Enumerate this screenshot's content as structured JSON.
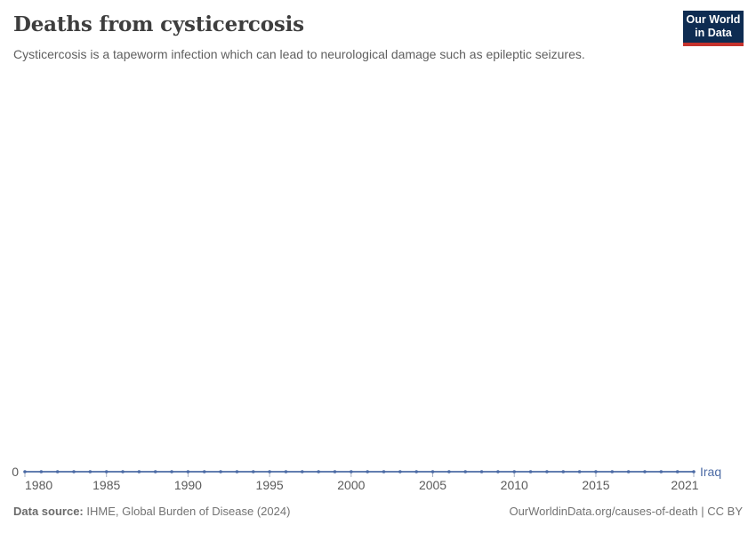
{
  "header": {
    "title": "Deaths from cysticercosis",
    "subtitle": "Cysticercosis is a tapeworm infection which can lead to neurological damage such as epileptic seizures."
  },
  "logo": {
    "line1": "Our World",
    "line2": "in Data",
    "bg_color": "#0e2c52",
    "accent_color": "#c5332d"
  },
  "chart_data": {
    "type": "line",
    "title": "Deaths from cysticercosis",
    "x": [
      1980,
      1981,
      1982,
      1983,
      1984,
      1985,
      1986,
      1987,
      1988,
      1989,
      1990,
      1991,
      1992,
      1993,
      1994,
      1995,
      1996,
      1997,
      1998,
      1999,
      2000,
      2001,
      2002,
      2003,
      2004,
      2005,
      2006,
      2007,
      2008,
      2009,
      2010,
      2011,
      2012,
      2013,
      2014,
      2015,
      2016,
      2017,
      2018,
      2019,
      2020,
      2021
    ],
    "series": [
      {
        "name": "Iraq",
        "color": "#4c6ba5",
        "values": [
          0,
          0,
          0,
          0,
          0,
          0,
          0,
          0,
          0,
          0,
          0,
          0,
          0,
          0,
          0,
          0,
          0,
          0,
          0,
          0,
          0,
          0,
          0,
          0,
          0,
          0,
          0,
          0,
          0,
          0,
          0,
          0,
          0,
          0,
          0,
          0,
          0,
          0,
          0,
          0,
          0,
          0
        ]
      }
    ],
    "xlim": [
      1980,
      2021
    ],
    "ylim": [
      0,
      0
    ],
    "x_ticks": [
      1980,
      1985,
      1990,
      1995,
      2000,
      2005,
      2010,
      2015,
      2021
    ],
    "y_ticks": [
      0
    ],
    "grid": false,
    "legend_position": "end-of-line-label",
    "entity_label": "Iraq",
    "show_point_markers": true
  },
  "footer": {
    "source_label": "Data source:",
    "source_value": " IHME, Global Burden of Disease (2024)",
    "credit": "OurWorldinData.org/causes-of-death | CC BY"
  },
  "colors": {
    "line": "#4c6ba5",
    "axis_text": "#5b5b5b",
    "tick_mark": "#a6b0c3",
    "title_text": "#3e3e3e",
    "subtitle_text": "#5f5f5f",
    "footer_text": "#737373"
  }
}
